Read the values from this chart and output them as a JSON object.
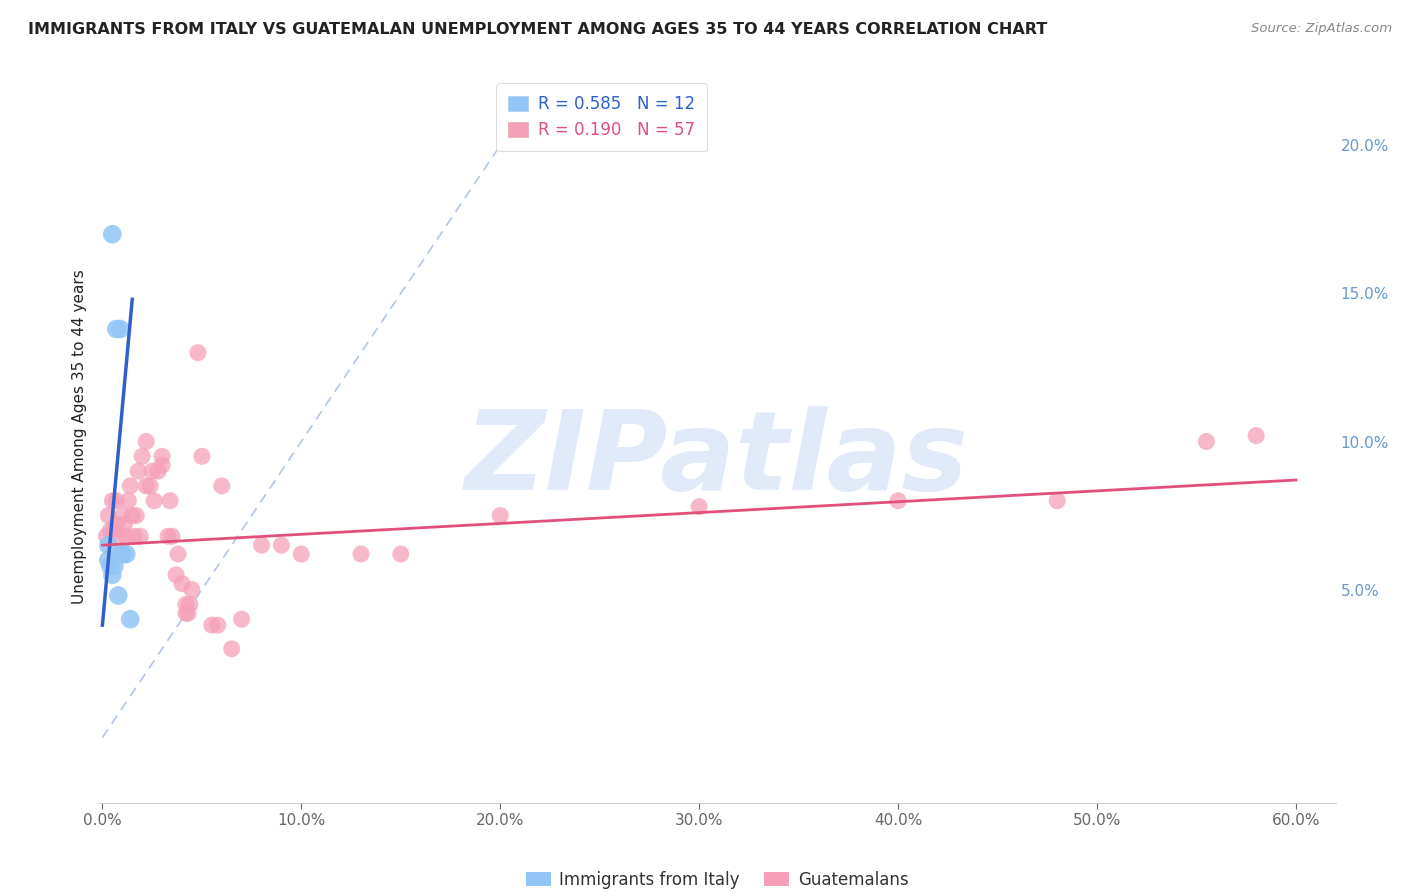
{
  "title": "IMMIGRANTS FROM ITALY VS GUATEMALAN UNEMPLOYMENT AMONG AGES 35 TO 44 YEARS CORRELATION CHART",
  "source": "Source: ZipAtlas.com",
  "ylabel": "Unemployment Among Ages 35 to 44 years",
  "xlim": [
    -0.002,
    0.62
  ],
  "ylim": [
    -0.022,
    0.225
  ],
  "xticks": [
    0.0,
    0.1,
    0.2,
    0.3,
    0.4,
    0.5,
    0.6
  ],
  "xticklabels": [
    "0.0%",
    "10.0%",
    "20.0%",
    "30.0%",
    "40.0%",
    "50.0%",
    "60.0%"
  ],
  "yticks_left": [],
  "yticks_right": [
    0.05,
    0.1,
    0.15,
    0.2
  ],
  "yticklabels_right": [
    "5.0%",
    "10.0%",
    "15.0%",
    "20.0%"
  ],
  "legend_label_blue": "Immigrants from Italy",
  "legend_label_pink": "Guatemalans",
  "R_blue": 0.585,
  "N_blue": 12,
  "R_pink": 0.19,
  "N_pink": 57,
  "color_blue": "#92C5F5",
  "color_pink": "#F5A0B8",
  "trend_color_blue": "#3060CC",
  "trend_color_pink": "#E0507A",
  "ref_line_color": "#B0C8E8",
  "grid_color": "#DDDDDD",
  "watermark": "ZIPatlas",
  "watermark_color": "#CCDDF5",
  "title_color": "#222222",
  "source_color": "#888888",
  "tick_color": "#666666",
  "right_tick_color": "#6699CC",
  "blue_points_x": [
    0.003,
    0.005,
    0.007,
    0.009,
    0.01,
    0.012,
    0.014,
    0.003,
    0.004,
    0.005,
    0.006,
    0.008
  ],
  "blue_points_y": [
    0.065,
    0.17,
    0.138,
    0.138,
    0.062,
    0.062,
    0.04,
    0.06,
    0.058,
    0.055,
    0.058,
    0.048
  ],
  "pink_points_x": [
    0.002,
    0.003,
    0.004,
    0.005,
    0.006,
    0.007,
    0.007,
    0.008,
    0.009,
    0.01,
    0.011,
    0.012,
    0.013,
    0.014,
    0.015,
    0.016,
    0.017,
    0.018,
    0.019,
    0.02,
    0.022,
    0.022,
    0.024,
    0.025,
    0.026,
    0.028,
    0.03,
    0.03,
    0.033,
    0.034,
    0.035,
    0.037,
    0.038,
    0.04,
    0.042,
    0.042,
    0.043,
    0.044,
    0.045,
    0.048,
    0.05,
    0.055,
    0.058,
    0.06,
    0.065,
    0.07,
    0.08,
    0.09,
    0.1,
    0.13,
    0.15,
    0.2,
    0.3,
    0.4,
    0.48,
    0.555,
    0.58
  ],
  "pink_points_y": [
    0.068,
    0.075,
    0.07,
    0.08,
    0.07,
    0.072,
    0.08,
    0.068,
    0.062,
    0.075,
    0.072,
    0.068,
    0.08,
    0.085,
    0.075,
    0.068,
    0.075,
    0.09,
    0.068,
    0.095,
    0.1,
    0.085,
    0.085,
    0.09,
    0.08,
    0.09,
    0.092,
    0.095,
    0.068,
    0.08,
    0.068,
    0.055,
    0.062,
    0.052,
    0.042,
    0.045,
    0.042,
    0.045,
    0.05,
    0.13,
    0.095,
    0.038,
    0.038,
    0.085,
    0.03,
    0.04,
    0.065,
    0.065,
    0.062,
    0.062,
    0.062,
    0.075,
    0.078,
    0.08,
    0.08,
    0.1,
    0.102
  ],
  "blue_trend_x": [
    0.0,
    0.015
  ],
  "blue_trend_y_start": 0.038,
  "blue_trend_y_end": 0.148,
  "pink_trend_x": [
    0.0,
    0.6
  ],
  "pink_trend_y_start": 0.065,
  "pink_trend_y_end": 0.087,
  "ref_line_x": [
    0.0,
    0.22
  ],
  "ref_line_y": [
    0.0,
    0.22
  ]
}
